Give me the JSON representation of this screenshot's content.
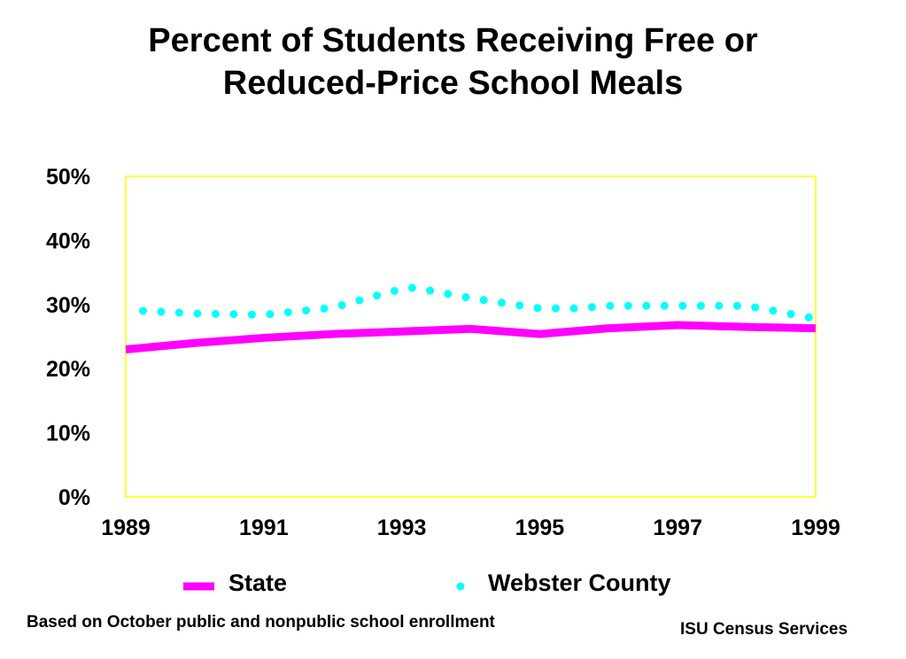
{
  "title_lines": [
    "Percent of Students Receiving Free or",
    "Reduced-Price School Meals"
  ],
  "footnote": "Based on October public and nonpublic school enrollment",
  "credit": "ISU Census Services",
  "chart_data": {
    "type": "line",
    "title": "Percent of Students Receiving Free or Reduced-Price School Meals",
    "xlim": [
      1989,
      1999
    ],
    "ylim": [
      0,
      50
    ],
    "x_ticks": [
      "1989",
      "1991",
      "1993",
      "1995",
      "1997",
      "1999"
    ],
    "y_ticks": [
      "0%",
      "10%",
      "20%",
      "30%",
      "40%",
      "50%"
    ],
    "grid": false,
    "legend_position": "bottom",
    "frame_color": "#ffff00",
    "series": [
      {
        "name": "State",
        "style": "solid",
        "color": "#ff00ff",
        "x": [
          1989,
          1990,
          1991,
          1992,
          1993,
          1994,
          1995,
          1996,
          1997,
          1998,
          1999
        ],
        "values": [
          23.0,
          24.0,
          24.8,
          25.4,
          25.8,
          26.2,
          25.4,
          26.3,
          26.8,
          26.5,
          26.3
        ]
      },
      {
        "name": "Webster County",
        "style": "dotted",
        "color": "#00ffff",
        "x": [
          1989.25,
          1990,
          1991,
          1992,
          1992.5,
          1993.1,
          1993.5,
          1994,
          1995,
          1995.5,
          1996,
          1997,
          1998,
          1998.9
        ],
        "values": [
          29.0,
          28.6,
          28.4,
          29.5,
          31.0,
          32.7,
          32.0,
          31.0,
          29.4,
          29.4,
          29.8,
          29.8,
          29.8,
          28.0
        ]
      }
    ]
  }
}
